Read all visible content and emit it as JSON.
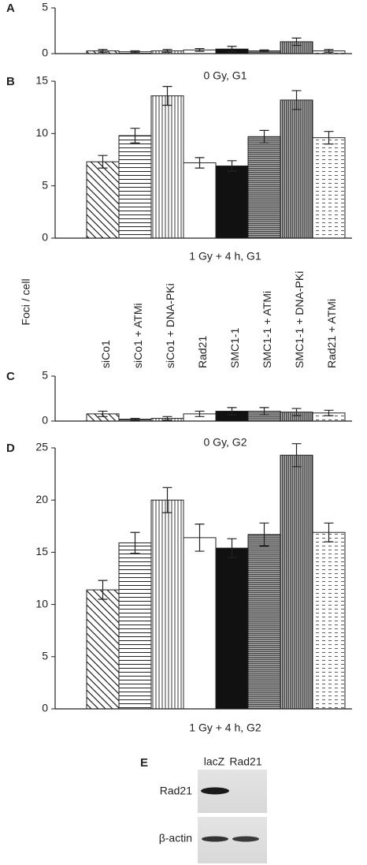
{
  "y_label": "Foci / cell",
  "bar_patterns": [
    "diagonal",
    "horizontal",
    "vertical",
    "white",
    "black",
    "dense-horizontal",
    "dense-vertical",
    "dashed"
  ],
  "chart_data": [
    {
      "type": "bar",
      "panel_label": "A",
      "title": "0 Gy, G1",
      "ylim": [
        0,
        5
      ],
      "yticks": [
        0,
        5
      ],
      "values": [
        0.3,
        0.2,
        0.3,
        0.4,
        0.5,
        0.3,
        1.3,
        0.3
      ],
      "errors": [
        0.15,
        0.1,
        0.15,
        0.15,
        0.3,
        0.1,
        0.4,
        0.15
      ]
    },
    {
      "type": "bar",
      "panel_label": "B",
      "title": "1 Gy + 4 h, G1",
      "ylim": [
        0,
        15
      ],
      "yticks": [
        0,
        5,
        10,
        15
      ],
      "values": [
        7.3,
        9.8,
        13.6,
        7.2,
        6.9,
        9.7,
        13.2,
        9.6
      ],
      "errors": [
        0.6,
        0.7,
        0.9,
        0.5,
        0.5,
        0.6,
        0.9,
        0.6
      ]
    },
    {
      "type": "bar",
      "panel_label": "C",
      "title": "0 Gy, G2",
      "ylim": [
        0,
        5
      ],
      "yticks": [
        0,
        5
      ],
      "categories": [
        "siCo1",
        "siCo1 + ATMi",
        "siCo1 + DNA-PKi",
        "Rad21",
        "SMC1-1",
        "SMC1-1 + ATMi",
        "SMC1-1 + DNA-PKi",
        "Rad21 + ATMi"
      ],
      "values": [
        0.8,
        0.2,
        0.3,
        0.8,
        1.1,
        1.1,
        1.0,
        0.9
      ],
      "errors": [
        0.3,
        0.1,
        0.2,
        0.3,
        0.4,
        0.4,
        0.4,
        0.3
      ]
    },
    {
      "type": "bar",
      "panel_label": "D",
      "title": "1 Gy + 4 h, G2",
      "ylim": [
        0,
        25
      ],
      "yticks": [
        0,
        5,
        10,
        15,
        20,
        25
      ],
      "values": [
        11.4,
        15.9,
        20.0,
        16.4,
        15.4,
        16.7,
        24.3,
        16.9
      ],
      "errors": [
        0.9,
        1.0,
        1.2,
        1.3,
        0.9,
        1.1,
        1.1,
        0.9
      ]
    }
  ],
  "blot": {
    "panel_label": "E",
    "columns": [
      "lacZ",
      "Rad21"
    ],
    "rows": [
      "Rad21",
      "β-actin"
    ]
  }
}
